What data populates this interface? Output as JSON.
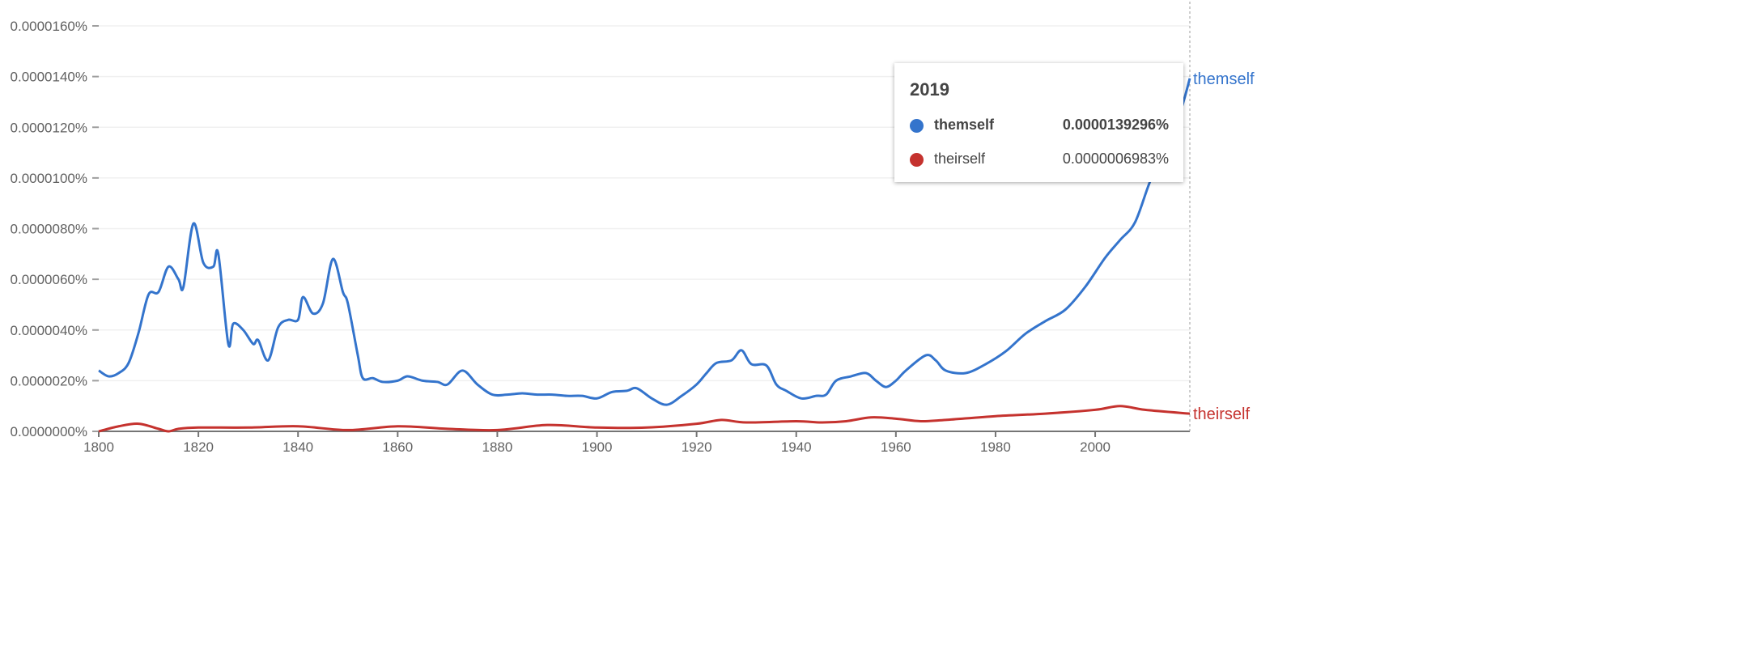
{
  "chart_data": {
    "type": "line",
    "title": "",
    "xlabel": "",
    "ylabel": "",
    "xlim": [
      1800,
      2019
    ],
    "ylim": [
      0,
      1.6e-06
    ],
    "x_ticks": [
      "1800",
      "1820",
      "1840",
      "1860",
      "1880",
      "1900",
      "1920",
      "1940",
      "1960",
      "1980",
      "2000"
    ],
    "y_ticks": [
      "0.0000000%",
      "0.0000020%",
      "0.0000040%",
      "0.0000060%",
      "0.0000080%",
      "0.0000100%",
      "0.0000120%",
      "0.0000140%",
      "0.0000160%"
    ],
    "grid": true,
    "series": [
      {
        "name": "themself",
        "color": "#3474cc",
        "points": [
          [
            1800,
            2.4e-07
          ],
          [
            1802,
            2.17e-07
          ],
          [
            1804,
            2.3e-07
          ],
          [
            1806,
            2.7e-07
          ],
          [
            1808,
            3.9e-07
          ],
          [
            1810,
            5.4e-07
          ],
          [
            1812,
            5.5e-07
          ],
          [
            1814,
            6.5e-07
          ],
          [
            1816,
            6e-07
          ],
          [
            1817,
            5.7e-07
          ],
          [
            1819,
            8.2e-07
          ],
          [
            1821,
            6.65e-07
          ],
          [
            1823,
            6.5e-07
          ],
          [
            1824,
            7e-07
          ],
          [
            1826,
            3.45e-07
          ],
          [
            1827,
            4.25e-07
          ],
          [
            1829,
            4e-07
          ],
          [
            1831,
            3.45e-07
          ],
          [
            1832,
            3.6e-07
          ],
          [
            1834,
            2.8e-07
          ],
          [
            1836,
            4.1e-07
          ],
          [
            1838,
            4.4e-07
          ],
          [
            1840,
            4.4e-07
          ],
          [
            1841,
            5.3e-07
          ],
          [
            1843,
            4.65e-07
          ],
          [
            1845,
            5.05e-07
          ],
          [
            1847,
            6.8e-07
          ],
          [
            1849,
            5.5e-07
          ],
          [
            1850,
            5.05e-07
          ],
          [
            1852,
            3e-07
          ],
          [
            1853,
            2.1e-07
          ],
          [
            1855,
            2.1e-07
          ],
          [
            1857,
            1.95e-07
          ],
          [
            1860,
            2e-07
          ],
          [
            1862,
            2.17e-07
          ],
          [
            1865,
            2e-07
          ],
          [
            1868,
            1.95e-07
          ],
          [
            1870,
            1.85e-07
          ],
          [
            1873,
            2.4e-07
          ],
          [
            1876,
            1.85e-07
          ],
          [
            1879,
            1.45e-07
          ],
          [
            1882,
            1.45e-07
          ],
          [
            1885,
            1.5e-07
          ],
          [
            1888,
            1.45e-07
          ],
          [
            1891,
            1.45e-07
          ],
          [
            1894,
            1.4e-07
          ],
          [
            1897,
            1.4e-07
          ],
          [
            1900,
            1.3e-07
          ],
          [
            1903,
            1.55e-07
          ],
          [
            1906,
            1.6e-07
          ],
          [
            1908,
            1.7e-07
          ],
          [
            1911,
            1.3e-07
          ],
          [
            1914,
            1.05e-07
          ],
          [
            1917,
            1.4e-07
          ],
          [
            1920,
            1.85e-07
          ],
          [
            1922,
            2.3e-07
          ],
          [
            1924,
            2.7e-07
          ],
          [
            1927,
            2.8e-07
          ],
          [
            1929,
            3.2e-07
          ],
          [
            1931,
            2.65e-07
          ],
          [
            1934,
            2.6e-07
          ],
          [
            1936,
            1.85e-07
          ],
          [
            1938,
            1.6e-07
          ],
          [
            1941,
            1.3e-07
          ],
          [
            1944,
            1.4e-07
          ],
          [
            1946,
            1.45e-07
          ],
          [
            1948,
            2e-07
          ],
          [
            1951,
            2.17e-07
          ],
          [
            1954,
            2.3e-07
          ],
          [
            1956,
            2e-07
          ],
          [
            1958,
            1.75e-07
          ],
          [
            1960,
            2e-07
          ],
          [
            1962,
            2.4e-07
          ],
          [
            1966,
            3e-07
          ],
          [
            1968,
            2.8e-07
          ],
          [
            1970,
            2.4e-07
          ],
          [
            1974,
            2.3e-07
          ],
          [
            1978,
            2.65e-07
          ],
          [
            1982,
            3.15e-07
          ],
          [
            1986,
            3.85e-07
          ],
          [
            1990,
            4.35e-07
          ],
          [
            1994,
            4.8e-07
          ],
          [
            1998,
            5.7e-07
          ],
          [
            2002,
            6.85e-07
          ],
          [
            2005,
            7.55e-07
          ],
          [
            2008,
            8.25e-07
          ],
          [
            2011,
            9.85e-07
          ],
          [
            2014,
            1.11e-06
          ],
          [
            2017,
            1.255e-06
          ],
          [
            2019,
            1.39296e-06
          ]
        ]
      },
      {
        "name": "theirself",
        "color": "#c5322e",
        "points": [
          [
            1800,
            0.0
          ],
          [
            1804,
            2e-08
          ],
          [
            1808,
            3e-08
          ],
          [
            1812,
            1e-08
          ],
          [
            1814,
            0.0
          ],
          [
            1816,
            1e-08
          ],
          [
            1820,
            1.5e-08
          ],
          [
            1830,
            1.5e-08
          ],
          [
            1840,
            2e-08
          ],
          [
            1850,
            5e-09
          ],
          [
            1860,
            2e-08
          ],
          [
            1870,
            1e-08
          ],
          [
            1880,
            5e-09
          ],
          [
            1890,
            2.5e-08
          ],
          [
            1900,
            1.5e-08
          ],
          [
            1910,
            1.5e-08
          ],
          [
            1920,
            3e-08
          ],
          [
            1925,
            4.5e-08
          ],
          [
            1930,
            3.5e-08
          ],
          [
            1940,
            4e-08
          ],
          [
            1945,
            3.5e-08
          ],
          [
            1950,
            4e-08
          ],
          [
            1955,
            5.5e-08
          ],
          [
            1960,
            5e-08
          ],
          [
            1965,
            4e-08
          ],
          [
            1970,
            4.5e-08
          ],
          [
            1980,
            6e-08
          ],
          [
            1990,
            7e-08
          ],
          [
            2000,
            8.5e-08
          ],
          [
            2005,
            1e-07
          ],
          [
            2010,
            8.5e-08
          ],
          [
            2019,
            6.983e-08
          ]
        ]
      }
    ],
    "legend_placement": "right-end-labels"
  },
  "tooltip": {
    "year": "2019",
    "rows": [
      {
        "name": "themself",
        "value": "0.0000139296%",
        "color": "#3474cc"
      },
      {
        "name": "theirself",
        "value": "0.0000006983%",
        "color": "#c5322e"
      }
    ]
  }
}
